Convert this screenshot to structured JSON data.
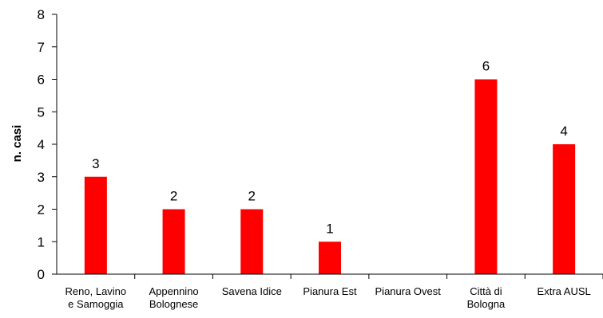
{
  "chart_data": {
    "type": "bar",
    "title": "",
    "xlabel": "",
    "ylabel": "n. casi",
    "ylim": [
      0,
      8
    ],
    "yticks": [
      0,
      1,
      2,
      3,
      4,
      5,
      6,
      7,
      8
    ],
    "grid": false,
    "legend": "none",
    "categories": [
      [
        "Reno, Lavino",
        "e Samoggia"
      ],
      [
        "Appennino",
        "Bolognese"
      ],
      [
        "Savena Idice"
      ],
      [
        "Pianura Est"
      ],
      [
        "Pianura Ovest"
      ],
      [
        "Città di",
        "Bologna"
      ],
      [
        "Extra AUSL"
      ]
    ],
    "values": [
      3,
      2,
      2,
      1,
      null,
      6,
      4
    ],
    "data_labels": [
      "3",
      "2",
      "2",
      "1",
      "",
      "6",
      "4"
    ],
    "bar_color": "#ff0000",
    "axis_color": "#000000"
  }
}
